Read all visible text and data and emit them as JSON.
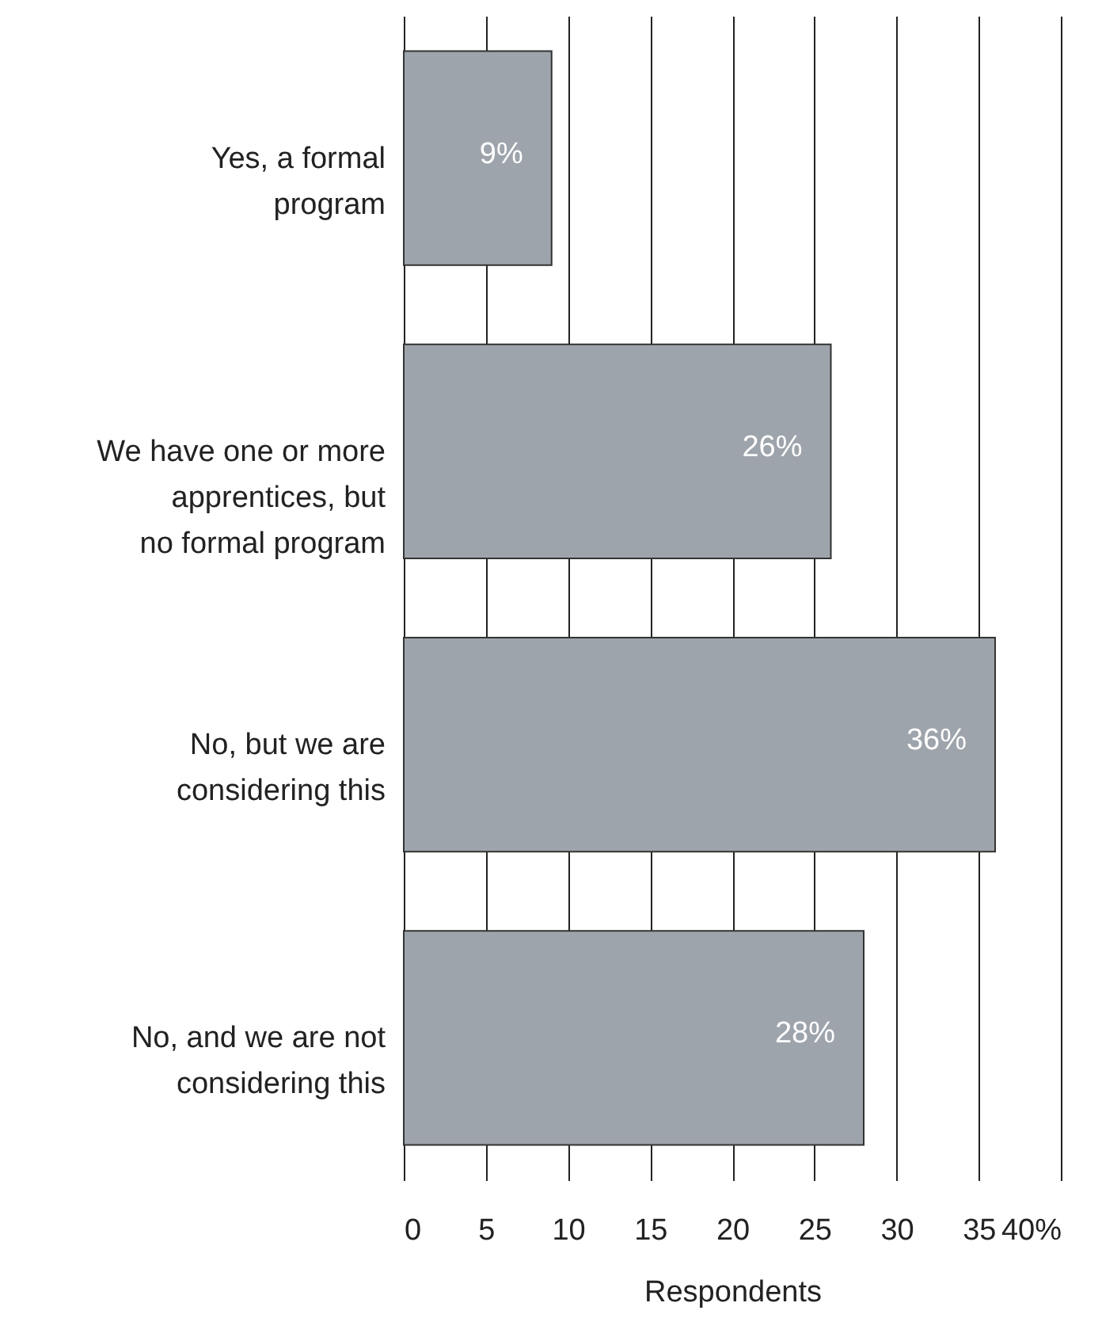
{
  "chart_data": {
    "type": "bar",
    "orientation": "horizontal",
    "categories": [
      "Yes, a formal program",
      "We have one or more apprentices, but no formal program",
      "No, but we are considering this",
      "No, and we are not considering this"
    ],
    "values": [
      9,
      26,
      36,
      28
    ],
    "color": "#9ea4ab",
    "value_labels": [
      "9%",
      "26%",
      "36%",
      "28%"
    ],
    "xlabel": "Respondents",
    "xlim": [
      0,
      40
    ],
    "xticks": [
      0,
      5,
      10,
      15,
      20,
      25,
      30,
      35,
      {
        "value": 40,
        "label": "40%"
      }
    ],
    "grid": "x"
  }
}
